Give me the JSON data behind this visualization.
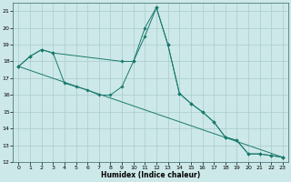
{
  "xlabel": "Humidex (Indice chaleur)",
  "background_color": "#cde8e8",
  "grid_color": "#a8cccc",
  "line_color": "#1a7a6e",
  "xlim": [
    -0.5,
    23.5
  ],
  "ylim": [
    12,
    21.5
  ],
  "yticks": [
    12,
    13,
    14,
    15,
    16,
    17,
    18,
    19,
    20,
    21
  ],
  "xticks": [
    0,
    1,
    2,
    3,
    4,
    5,
    6,
    7,
    8,
    9,
    10,
    11,
    12,
    13,
    14,
    15,
    16,
    17,
    18,
    19,
    20,
    21,
    22,
    23
  ],
  "line1_x": [
    0,
    1,
    2,
    3,
    4,
    5,
    6,
    7,
    8,
    9,
    10,
    11,
    12,
    13,
    14,
    15,
    16,
    17,
    18,
    19,
    20,
    21,
    22,
    23
  ],
  "line1_y": [
    17.7,
    18.3,
    18.7,
    18.5,
    16.7,
    16.5,
    16.3,
    16.0,
    16.0,
    16.5,
    18.0,
    19.5,
    21.2,
    19.0,
    16.1,
    15.5,
    15.0,
    14.4,
    13.5,
    13.3,
    12.5,
    12.5,
    12.4,
    12.3
  ],
  "line2_x": [
    0,
    1,
    2,
    3,
    9,
    10,
    11,
    12,
    13,
    14,
    15,
    16,
    17,
    18,
    19,
    20,
    21,
    22,
    23
  ],
  "line2_y": [
    17.7,
    18.3,
    18.7,
    18.5,
    18.0,
    18.0,
    20.0,
    21.2,
    19.0,
    16.1,
    15.5,
    15.0,
    14.4,
    13.5,
    13.3,
    12.5,
    12.5,
    12.4,
    12.3
  ],
  "line3_x": [
    0,
    23
  ],
  "line3_y": [
    17.7,
    12.3
  ]
}
